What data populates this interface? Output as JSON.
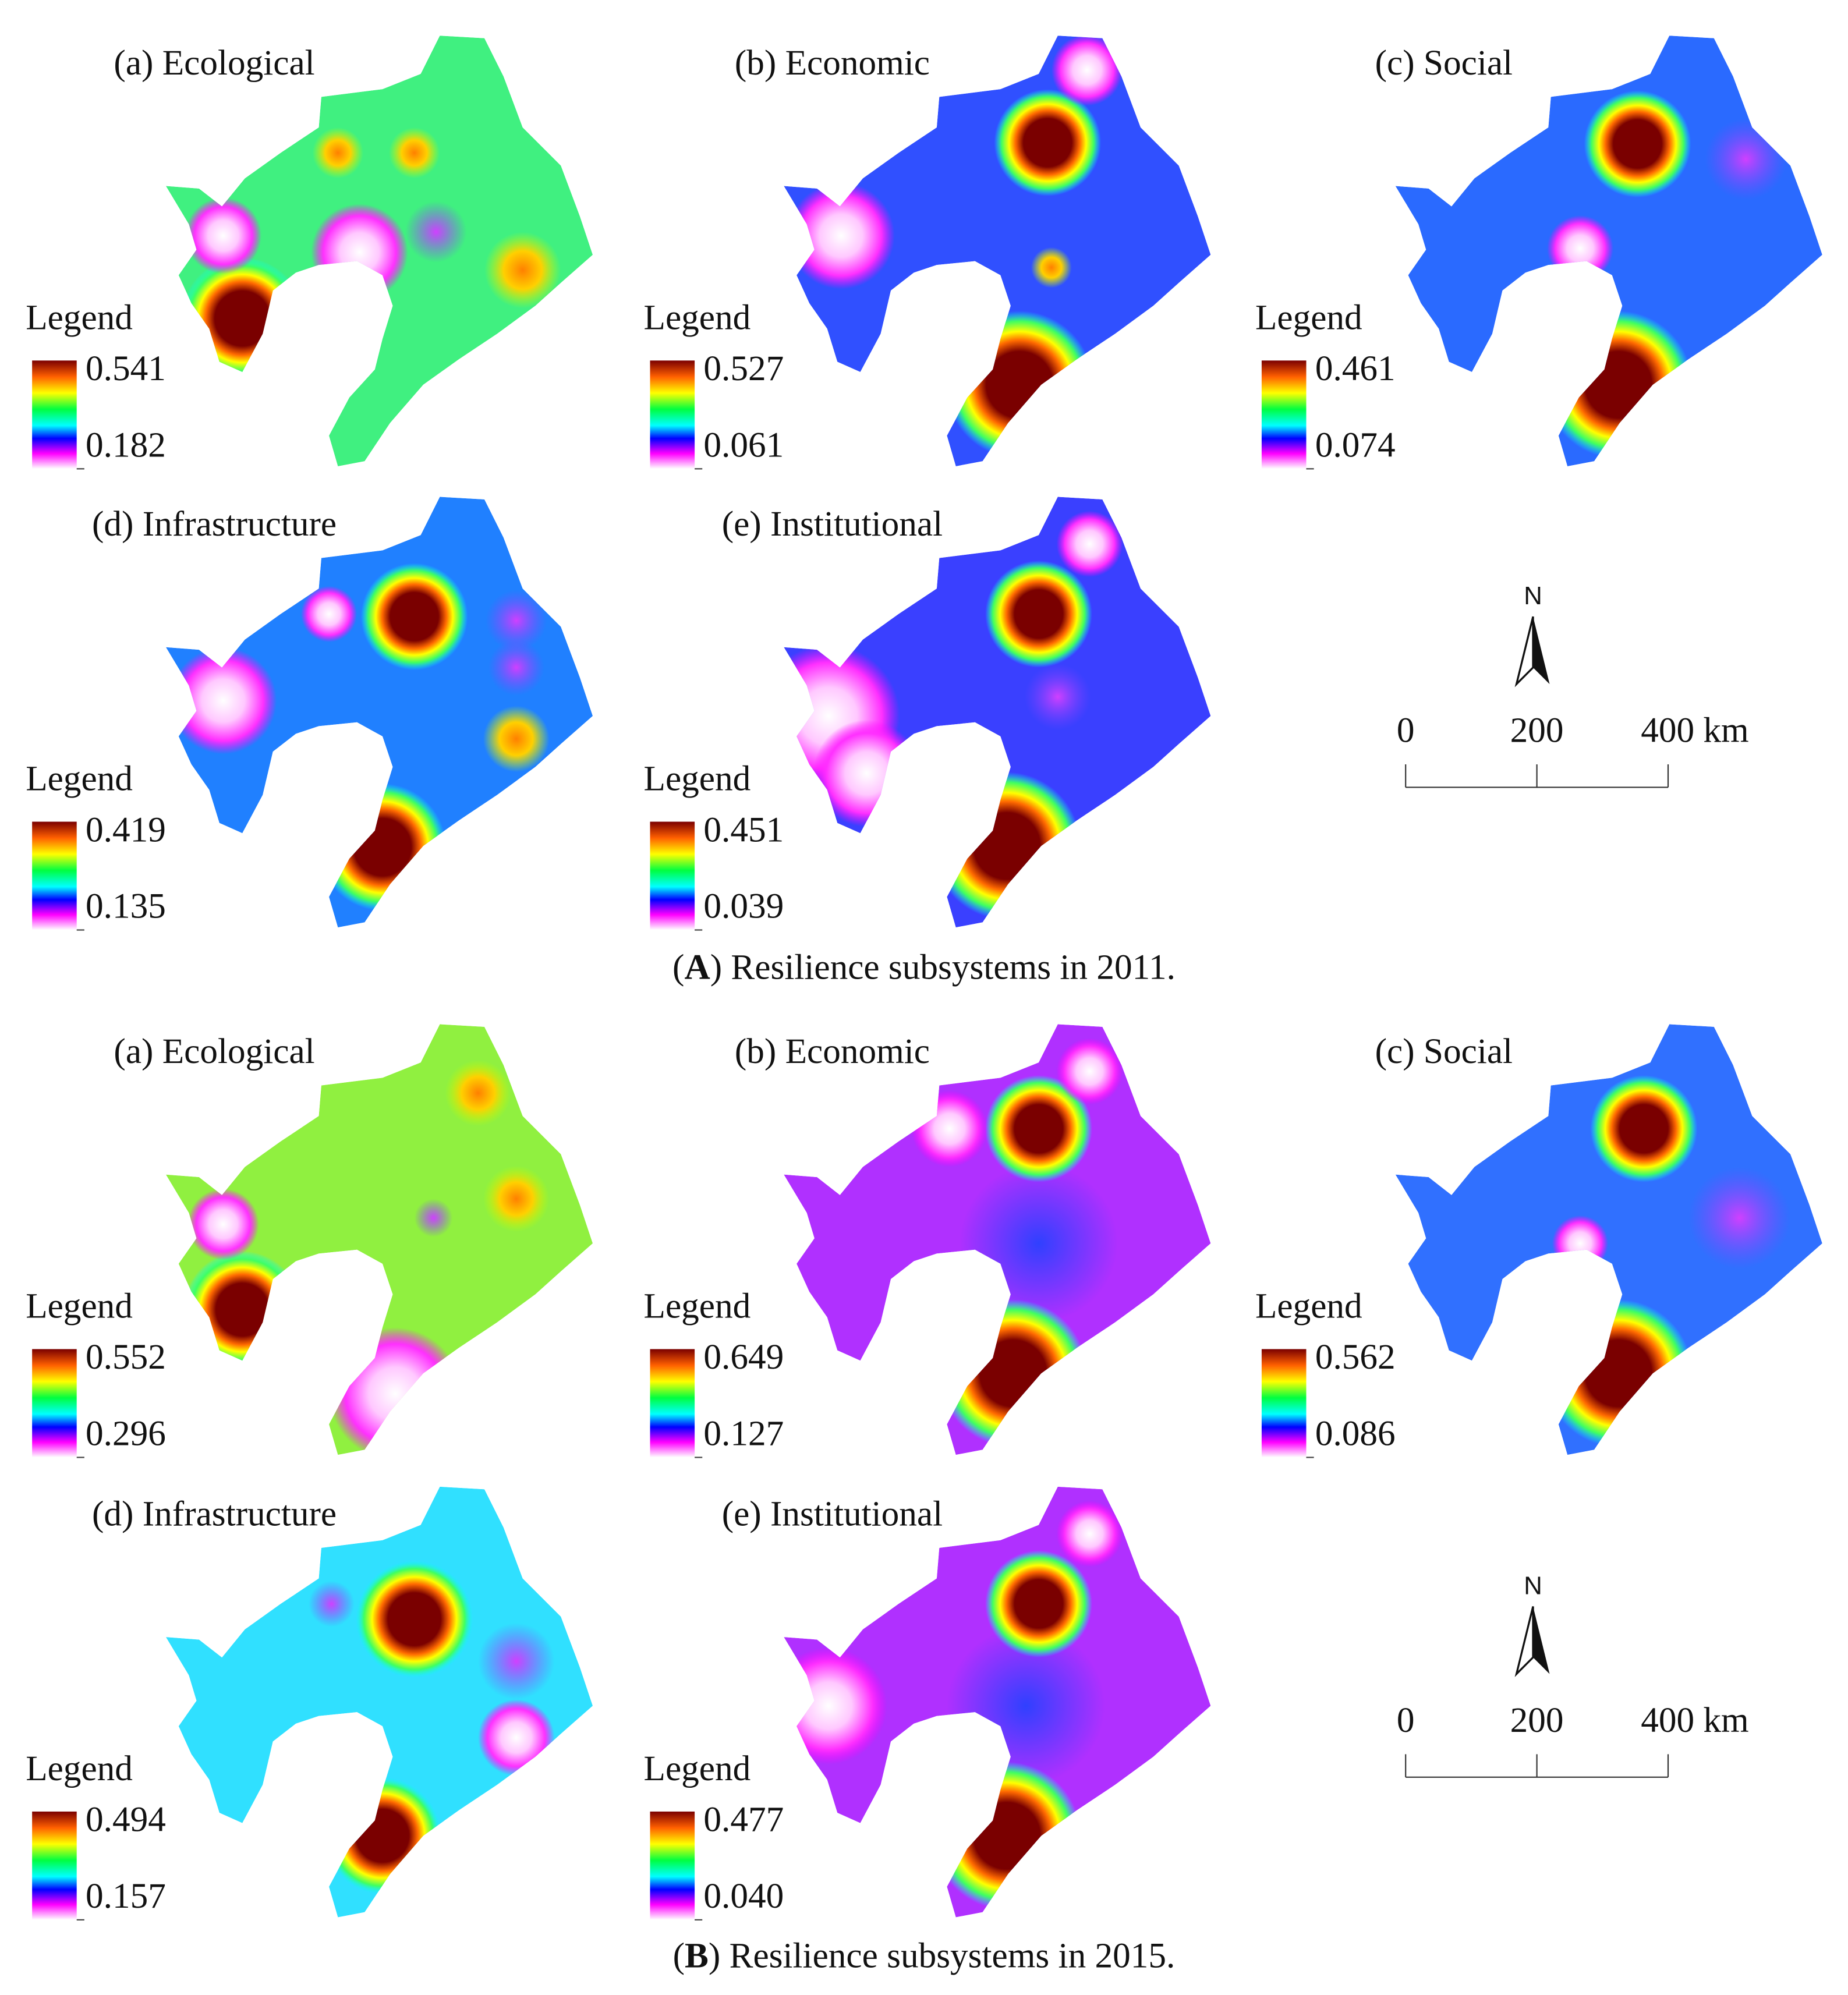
{
  "figure": {
    "groups": [
      {
        "caption": {
          "open": "(",
          "letter": "A",
          "rest": ") Resilience subsystems in 2011."
        },
        "panels": [
          {
            "title": "(a) Ecological",
            "legend_title": "Legend",
            "max": "0.541",
            "min": "0.182"
          },
          {
            "title": "(b) Economic",
            "legend_title": "Legend",
            "max": "0.527",
            "min": "0.061"
          },
          {
            "title": "(c) Social",
            "legend_title": "Legend",
            "max": "0.461",
            "min": "0.074"
          },
          {
            "title": "(d) Infrastructure",
            "legend_title": "Legend",
            "max": "0.419",
            "min": "0.135"
          },
          {
            "title": "(e) Institutional",
            "legend_title": "Legend",
            "max": "0.451",
            "min": "0.039"
          }
        ],
        "north": "N",
        "scale_labels": [
          "0",
          "200",
          "400 km"
        ]
      },
      {
        "caption": {
          "open": "(",
          "letter": "B",
          "rest": ") Resilience subsystems in 2015."
        },
        "panels": [
          {
            "title": "(a) Ecological",
            "legend_title": "Legend",
            "max": "0.552",
            "min": "0.296"
          },
          {
            "title": "(b) Economic",
            "legend_title": "Legend",
            "max": "0.649",
            "min": "0.127"
          },
          {
            "title": "(c) Social",
            "legend_title": "Legend",
            "max": "0.562",
            "min": "0.086"
          },
          {
            "title": "(d) Infrastructure",
            "legend_title": "Legend",
            "max": "0.494",
            "min": "0.157"
          },
          {
            "title": "(e) Institutional",
            "legend_title": "Legend",
            "max": "0.477",
            "min": "0.040"
          }
        ],
        "north": "N",
        "scale_labels": [
          "0",
          "200",
          "400 km"
        ]
      }
    ]
  }
}
